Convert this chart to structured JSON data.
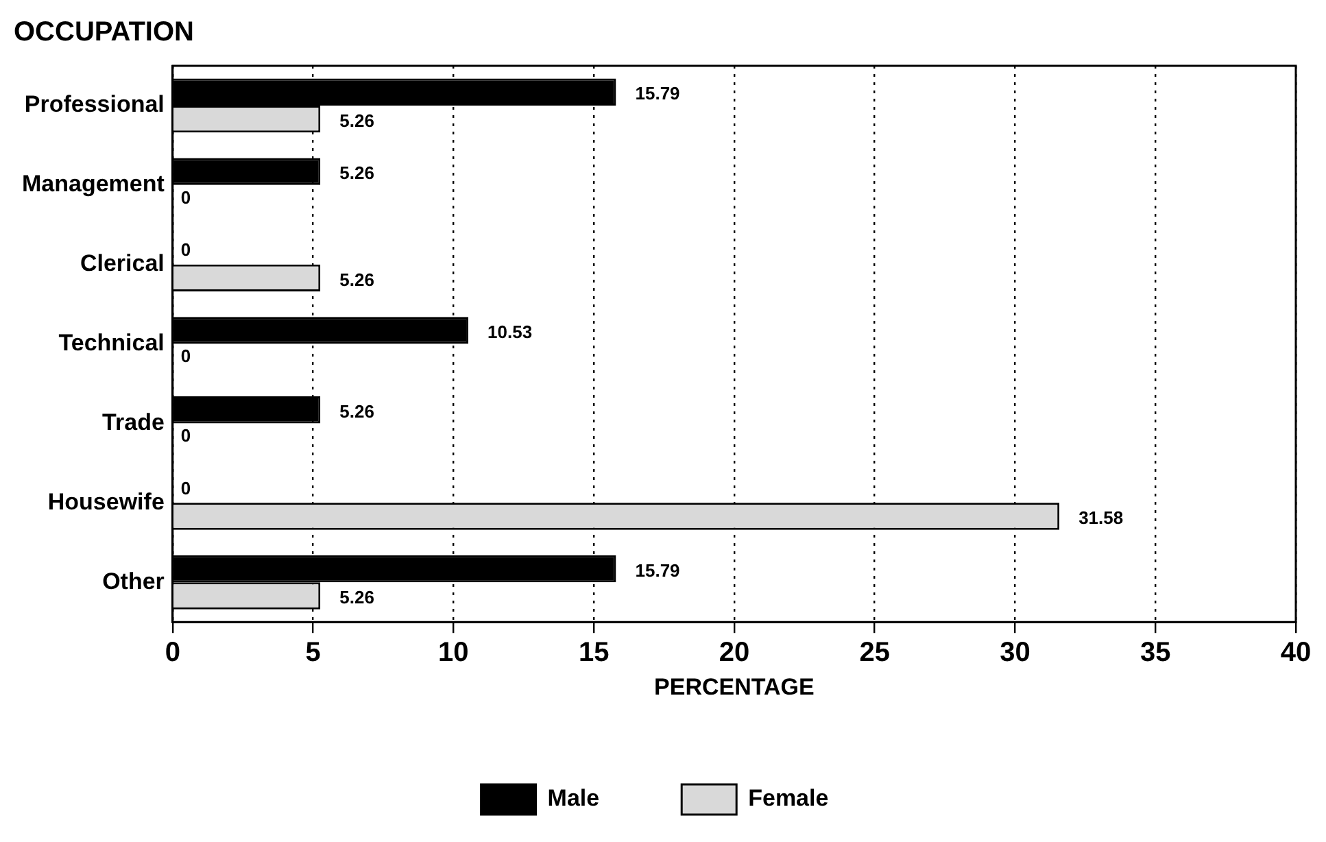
{
  "chart_data": {
    "type": "bar",
    "orientation": "horizontal",
    "title": "OCCUPATION",
    "xlabel": "PERCENTAGE",
    "categories": [
      "Professional",
      "Management",
      "Clerical",
      "Technical",
      "Trade",
      "Housewife",
      "Other"
    ],
    "series": [
      {
        "name": "Male",
        "color": "#000000",
        "values": [
          15.79,
          5.26,
          0,
          10.53,
          5.26,
          0,
          15.79
        ]
      },
      {
        "name": "Female",
        "color": "#d9d9d9",
        "values": [
          5.26,
          0,
          5.26,
          0,
          0,
          31.58,
          5.26
        ]
      }
    ],
    "xlim": [
      0,
      40
    ],
    "xticks": [
      0,
      5,
      10,
      15,
      20,
      25,
      30,
      35,
      40
    ],
    "grid": "x",
    "legend": "bottom",
    "data_labels": true
  }
}
